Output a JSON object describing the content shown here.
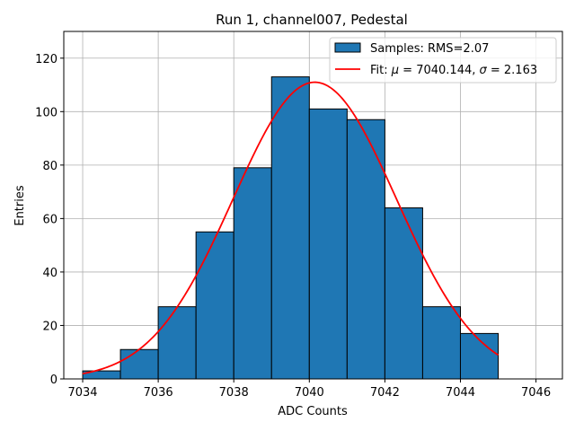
{
  "chart_data": {
    "type": "bar",
    "title": "Run 1, channel007, Pedestal",
    "xlabel": "ADC Counts",
    "ylabel": "Entries",
    "xlim": [
      7033.5,
      7046.7
    ],
    "ylim": [
      0,
      130
    ],
    "xticks": [
      7034,
      7036,
      7038,
      7040,
      7042,
      7044,
      7046
    ],
    "yticks": [
      0,
      20,
      40,
      60,
      80,
      100,
      120
    ],
    "grid": true,
    "bin_edges": [
      7034,
      7035,
      7036,
      7037,
      7038,
      7039,
      7040,
      7041,
      7042,
      7043,
      7044,
      7045
    ],
    "values": [
      3,
      11,
      27,
      55,
      79,
      113,
      101,
      97,
      64,
      27,
      17
    ],
    "bar_color": "#1f77b4",
    "fit": {
      "amplitude": 111,
      "mu": 7040.144,
      "sigma": 2.163,
      "x_range": [
        7034,
        7045
      ],
      "color": "#ff0000"
    },
    "legend": {
      "placement": "top-right",
      "entries": [
        {
          "label": "Samples: RMS=2.07",
          "kind": "patch"
        },
        {
          "label_prefix": "Fit: ",
          "mu_symbol": "μ",
          "mu_text": " = 7040.144, ",
          "sigma_symbol": "σ",
          "sigma_text": " = 2.163",
          "kind": "line"
        }
      ]
    }
  }
}
